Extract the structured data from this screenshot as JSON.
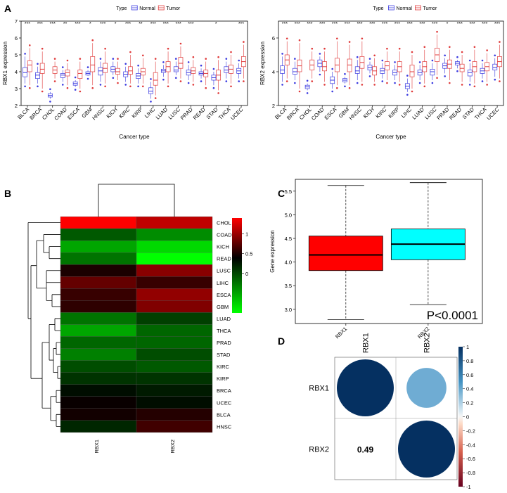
{
  "panels": {
    "A": {
      "label": "A",
      "legend": {
        "title": "Type",
        "items": [
          {
            "name": "Normal",
            "color": "#3a3ae0"
          },
          {
            "name": "Tumor",
            "color": "#e03a3a"
          }
        ]
      },
      "xlabel": "Cancer type",
      "left": {
        "ylabel": "RBX1 expression",
        "ylim": [
          2,
          7
        ],
        "yticks": [
          2,
          3,
          4,
          5,
          6,
          7
        ],
        "categories": [
          "BLCA",
          "BRCA",
          "CHOL",
          "COAD",
          "ESCA",
          "GBM",
          "HNSC",
          "KICH",
          "KIRC",
          "KIRP",
          "LIHC",
          "LUAD",
          "LUSC",
          "PRAD",
          "READ",
          "STAD",
          "THCA",
          "UCEC"
        ],
        "significance": [
          "***",
          "***",
          "***",
          "**",
          "***",
          "*",
          "***",
          "*",
          "***",
          "**",
          "***",
          "***",
          "***",
          "***",
          "",
          "*",
          "",
          "***"
        ],
        "normal": [
          {
            "q1": 3.7,
            "med": 3.95,
            "q3": 4.25,
            "lo": 3.3,
            "hi": 4.9
          },
          {
            "q1": 3.6,
            "med": 3.8,
            "q3": 3.95,
            "lo": 3.3,
            "hi": 4.3
          },
          {
            "q1": 2.5,
            "med": 2.6,
            "q3": 2.7,
            "lo": 2.4,
            "hi": 2.8
          },
          {
            "q1": 3.65,
            "med": 3.8,
            "q3": 3.9,
            "lo": 3.4,
            "hi": 4.1
          },
          {
            "q1": 3.2,
            "med": 3.3,
            "q3": 3.4,
            "lo": 3.1,
            "hi": 3.5
          },
          {
            "q1": 3.8,
            "med": 3.9,
            "q3": 4.0,
            "lo": 3.75,
            "hi": 4.1
          },
          {
            "q1": 3.8,
            "med": 4.05,
            "q3": 4.25,
            "lo": 3.4,
            "hi": 4.6
          },
          {
            "q1": 4.0,
            "med": 4.15,
            "q3": 4.3,
            "lo": 3.8,
            "hi": 4.6
          },
          {
            "q1": 3.7,
            "med": 3.85,
            "q3": 4.0,
            "lo": 3.4,
            "hi": 4.3
          },
          {
            "q1": 3.6,
            "med": 3.75,
            "q3": 3.9,
            "lo": 3.3,
            "hi": 4.2
          },
          {
            "q1": 2.7,
            "med": 2.85,
            "q3": 3.05,
            "lo": 2.4,
            "hi": 3.4
          },
          {
            "q1": 3.95,
            "med": 4.05,
            "q3": 4.15,
            "lo": 3.7,
            "hi": 4.4
          },
          {
            "q1": 4.0,
            "med": 4.1,
            "q3": 4.3,
            "lo": 3.8,
            "hi": 4.6
          },
          {
            "q1": 3.8,
            "med": 3.95,
            "q3": 4.1,
            "lo": 3.5,
            "hi": 4.4
          },
          {
            "q1": 3.8,
            "med": 3.9,
            "q3": 4.0,
            "lo": 3.6,
            "hi": 4.2
          },
          {
            "q1": 3.5,
            "med": 3.65,
            "q3": 3.8,
            "lo": 3.2,
            "hi": 4.0
          },
          {
            "q1": 3.95,
            "med": 4.1,
            "q3": 4.3,
            "lo": 3.6,
            "hi": 4.6
          },
          {
            "q1": 3.9,
            "med": 4.05,
            "q3": 4.2,
            "lo": 3.6,
            "hi": 4.5
          }
        ],
        "tumor": [
          {
            "q1": 4.0,
            "med": 4.4,
            "q3": 4.65,
            "lo": 3.2,
            "hi": 5.4
          },
          {
            "q1": 3.9,
            "med": 4.15,
            "q3": 4.5,
            "lo": 3.0,
            "hi": 5.2
          },
          {
            "q1": 3.9,
            "med": 4.1,
            "q3": 4.3,
            "lo": 3.6,
            "hi": 4.6
          },
          {
            "q1": 3.75,
            "med": 3.95,
            "q3": 4.1,
            "lo": 3.2,
            "hi": 4.5
          },
          {
            "q1": 3.6,
            "med": 3.9,
            "q3": 4.1,
            "lo": 3.0,
            "hi": 4.6
          },
          {
            "q1": 4.0,
            "med": 4.4,
            "q3": 4.9,
            "lo": 3.2,
            "hi": 5.7
          },
          {
            "q1": 3.95,
            "med": 4.2,
            "q3": 4.5,
            "lo": 3.3,
            "hi": 5.2
          },
          {
            "q1": 3.85,
            "med": 4.0,
            "q3": 4.2,
            "lo": 3.5,
            "hi": 4.6
          },
          {
            "q1": 3.85,
            "med": 4.05,
            "q3": 4.3,
            "lo": 3.3,
            "hi": 5.0
          },
          {
            "q1": 3.8,
            "med": 4.0,
            "q3": 4.2,
            "lo": 3.3,
            "hi": 4.8
          },
          {
            "q1": 3.2,
            "med": 3.5,
            "q3": 3.95,
            "lo": 2.6,
            "hi": 4.6
          },
          {
            "q1": 4.0,
            "med": 4.3,
            "q3": 4.6,
            "lo": 3.3,
            "hi": 5.2
          },
          {
            "q1": 4.2,
            "med": 4.5,
            "q3": 4.85,
            "lo": 3.6,
            "hi": 5.5
          },
          {
            "q1": 3.9,
            "med": 4.05,
            "q3": 4.25,
            "lo": 3.4,
            "hi": 4.7
          },
          {
            "q1": 3.7,
            "med": 3.9,
            "q3": 4.1,
            "lo": 3.2,
            "hi": 4.6
          },
          {
            "q1": 3.5,
            "med": 3.8,
            "q3": 4.1,
            "lo": 2.9,
            "hi": 4.7
          },
          {
            "q1": 3.9,
            "med": 4.15,
            "q3": 4.4,
            "lo": 3.3,
            "hi": 5.0
          },
          {
            "q1": 4.3,
            "med": 4.6,
            "q3": 4.9,
            "lo": 3.6,
            "hi": 5.6
          }
        ]
      },
      "right": {
        "ylabel": "RBX2 expression",
        "ylim": [
          2,
          7
        ],
        "yticks": [
          2,
          4,
          6
        ],
        "categories": [
          "BLCA",
          "BRCA",
          "CHOL",
          "COAD",
          "ESCA",
          "GBM",
          "HNSC",
          "KICH",
          "KIRC",
          "KIRP",
          "LIHC",
          "LUAD",
          "LUSC",
          "PRAD",
          "READ",
          "STAD",
          "THCA",
          "UCEC"
        ],
        "significance": [
          "***",
          "***",
          "***",
          "***",
          "***",
          "***",
          "***",
          "***",
          "***",
          "***",
          "***",
          "***",
          "***",
          "*",
          "***",
          "***",
          "***",
          "***"
        ],
        "normal": [
          {
            "q1": 3.9,
            "med": 4.1,
            "q3": 4.35,
            "lo": 3.4,
            "hi": 4.9
          },
          {
            "q1": 3.85,
            "med": 4.0,
            "q3": 4.2,
            "lo": 3.5,
            "hi": 4.6
          },
          {
            "q1": 3.0,
            "med": 3.1,
            "q3": 3.2,
            "lo": 2.9,
            "hi": 3.3
          },
          {
            "q1": 4.3,
            "med": 4.5,
            "q3": 4.7,
            "lo": 4.0,
            "hi": 4.9
          },
          {
            "q1": 3.3,
            "med": 3.5,
            "q3": 3.7,
            "lo": 3.0,
            "hi": 4.0
          },
          {
            "q1": 3.4,
            "med": 3.5,
            "q3": 3.6,
            "lo": 3.3,
            "hi": 3.7
          },
          {
            "q1": 3.9,
            "med": 4.05,
            "q3": 4.3,
            "lo": 3.5,
            "hi": 4.7
          },
          {
            "q1": 4.1,
            "med": 4.25,
            "q3": 4.4,
            "lo": 3.9,
            "hi": 4.6
          },
          {
            "q1": 3.9,
            "med": 4.05,
            "q3": 4.2,
            "lo": 3.6,
            "hi": 4.5
          },
          {
            "q1": 3.8,
            "med": 3.95,
            "q3": 4.1,
            "lo": 3.5,
            "hi": 4.4
          },
          {
            "q1": 3.0,
            "med": 3.15,
            "q3": 3.3,
            "lo": 2.8,
            "hi": 3.6
          },
          {
            "q1": 3.8,
            "med": 3.95,
            "q3": 4.1,
            "lo": 3.5,
            "hi": 4.4
          },
          {
            "q1": 3.8,
            "med": 4.0,
            "q3": 4.15,
            "lo": 3.5,
            "hi": 4.5
          },
          {
            "q1": 4.2,
            "med": 4.35,
            "q3": 4.5,
            "lo": 3.9,
            "hi": 4.8
          },
          {
            "q1": 4.4,
            "med": 4.5,
            "q3": 4.6,
            "lo": 4.2,
            "hi": 4.7
          },
          {
            "q1": 3.75,
            "med": 3.95,
            "q3": 4.1,
            "lo": 3.4,
            "hi": 4.5
          },
          {
            "q1": 3.9,
            "med": 4.05,
            "q3": 4.2,
            "lo": 3.6,
            "hi": 4.5
          },
          {
            "q1": 4.1,
            "med": 4.25,
            "q3": 4.45,
            "lo": 3.7,
            "hi": 4.8
          }
        ],
        "tumor": [
          {
            "q1": 4.4,
            "med": 4.7,
            "q3": 5.0,
            "lo": 3.6,
            "hi": 5.8
          },
          {
            "q1": 4.0,
            "med": 4.35,
            "q3": 4.7,
            "lo": 3.0,
            "hi": 5.7
          },
          {
            "q1": 4.1,
            "med": 4.4,
            "q3": 4.7,
            "lo": 3.6,
            "hi": 5.2
          },
          {
            "q1": 4.05,
            "med": 4.3,
            "q3": 4.6,
            "lo": 3.4,
            "hi": 5.2
          },
          {
            "q1": 4.0,
            "med": 4.4,
            "q3": 4.8,
            "lo": 3.2,
            "hi": 5.8
          },
          {
            "q1": 4.0,
            "med": 4.4,
            "q3": 4.75,
            "lo": 3.2,
            "hi": 5.6
          },
          {
            "q1": 4.2,
            "med": 4.55,
            "q3": 4.9,
            "lo": 3.4,
            "hi": 5.8
          },
          {
            "q1": 3.8,
            "med": 4.05,
            "q3": 4.3,
            "lo": 3.4,
            "hi": 4.8
          },
          {
            "q1": 4.1,
            "med": 4.35,
            "q3": 4.6,
            "lo": 3.5,
            "hi": 5.2
          },
          {
            "q1": 4.0,
            "med": 4.3,
            "q3": 4.6,
            "lo": 3.4,
            "hi": 5.2
          },
          {
            "q1": 3.7,
            "med": 4.0,
            "q3": 4.4,
            "lo": 3.0,
            "hi": 5.0
          },
          {
            "q1": 4.0,
            "med": 4.3,
            "q3": 4.6,
            "lo": 3.3,
            "hi": 5.3
          },
          {
            "q1": 4.6,
            "med": 5.0,
            "q3": 5.4,
            "lo": 3.8,
            "hi": 6.2
          },
          {
            "q1": 4.2,
            "med": 4.45,
            "q3": 4.7,
            "lo": 3.5,
            "hi": 5.3
          },
          {
            "q1": 4.0,
            "med": 4.2,
            "q3": 4.45,
            "lo": 3.4,
            "hi": 5.0
          },
          {
            "q1": 4.0,
            "med": 4.3,
            "q3": 4.6,
            "lo": 3.3,
            "hi": 5.3
          },
          {
            "q1": 4.05,
            "med": 4.3,
            "q3": 4.55,
            "lo": 3.4,
            "hi": 5.1
          },
          {
            "q1": 4.3,
            "med": 4.6,
            "q3": 4.9,
            "lo": 3.6,
            "hi": 5.6
          }
        ]
      }
    },
    "B": {
      "label": "B",
      "rows": [
        "CHOL",
        "COAD",
        "KICH",
        "READ",
        "LUSC",
        "LIHC",
        "ESCA",
        "GBM",
        "LUAD",
        "THCA",
        "PRAD",
        "STAD",
        "KIRC",
        "KIRP",
        "BRCA",
        "UCEC",
        "BLCA",
        "HNSC"
      ],
      "cols": [
        "RBX1",
        "RBX2"
      ],
      "values": [
        [
          1.4,
          1.05
        ],
        [
          -0.35,
          -0.55
        ],
        [
          -0.65,
          -0.85
        ],
        [
          -0.45,
          -1.0
        ],
        [
          0.15,
          0.75
        ],
        [
          0.55,
          0.3
        ],
        [
          0.3,
          0.8
        ],
        [
          0.25,
          0.7
        ],
        [
          -0.45,
          -0.25
        ],
        [
          -0.65,
          -0.4
        ],
        [
          -0.4,
          -0.4
        ],
        [
          -0.5,
          -0.3
        ],
        [
          -0.3,
          -0.35
        ],
        [
          -0.2,
          -0.2
        ],
        [
          -0.05,
          -0.1
        ],
        [
          0.05,
          -0.05
        ],
        [
          0.1,
          0.2
        ],
        [
          -0.15,
          0.35
        ]
      ],
      "colorbar": {
        "ticks": [
          1,
          0.5,
          0
        ],
        "tick_labels": [
          "1",
          "0.5",
          "0"
        ],
        "range": [
          -1,
          1.4
        ]
      }
    },
    "C": {
      "label": "C",
      "ylabel": "Gene expression",
      "categories": [
        "RBX1",
        "RBX2"
      ],
      "yticks": [
        3.0,
        3.5,
        4.0,
        4.5,
        5.0,
        5.5
      ],
      "ytick_labels": [
        "3.0",
        "3.5",
        "4.0",
        "4.5",
        "5.0",
        "5.5"
      ],
      "ylim": [
        2.7,
        5.75
      ],
      "boxes": [
        {
          "q1": 3.82,
          "med": 4.15,
          "q3": 4.55,
          "lo": 2.78,
          "hi": 5.62,
          "color": "#ff0000"
        },
        {
          "q1": 4.05,
          "med": 4.38,
          "q3": 4.7,
          "lo": 3.1,
          "hi": 5.68,
          "color": "#00ffff"
        }
      ],
      "pvalue": "P<0.0001"
    },
    "D": {
      "label": "D",
      "vars": [
        "RBX1",
        "RBX2"
      ],
      "matrix": [
        [
          1,
          0.49
        ],
        [
          0.49,
          1
        ]
      ],
      "lower_text": "0.49",
      "colorbar": {
        "ticks": [
          1,
          0.8,
          0.6,
          0.4,
          0.2,
          0,
          -0.2,
          -0.4,
          -0.6,
          -0.8,
          -1
        ],
        "tick_labels": [
          "1",
          "0.8",
          "0.6",
          "0.4",
          "0.2",
          "0",
          "-0.2",
          "-0.4",
          "-0.6",
          "-0.8",
          "-1"
        ]
      }
    }
  }
}
